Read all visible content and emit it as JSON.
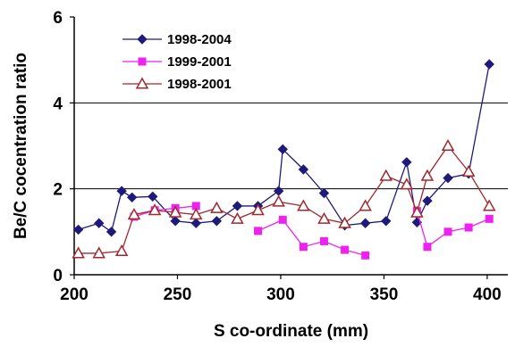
{
  "chart_data": {
    "type": "line",
    "title": "",
    "xlabel": "S co-ordinate (mm)",
    "ylabel": "Be/C cocentration ratio",
    "xlim": [
      200,
      410
    ],
    "ylim": [
      0,
      6
    ],
    "x_ticks": [
      200,
      250,
      300,
      350,
      400
    ],
    "y_ticks": [
      0,
      2,
      4,
      6
    ],
    "gridlines_y": [
      2,
      4
    ],
    "legend_position": "top-left",
    "series": [
      {
        "name": "1998-2004",
        "color": "#1f1a7a",
        "marker": "diamond",
        "segments": [
          [
            [
              202,
              1.05
            ],
            [
              212,
              1.2
            ],
            [
              218,
              1.0
            ],
            [
              223,
              1.95
            ],
            [
              228,
              1.8
            ],
            [
              238,
              1.82
            ],
            [
              249,
              1.25
            ],
            [
              259,
              1.2
            ],
            [
              269,
              1.25
            ],
            [
              279,
              1.6
            ],
            [
              289,
              1.6
            ],
            [
              299,
              1.95
            ],
            [
              301,
              2.92
            ],
            [
              311,
              2.45
            ],
            [
              321,
              1.9
            ],
            [
              331,
              1.15
            ],
            [
              341,
              1.2
            ],
            [
              351,
              1.25
            ],
            [
              361,
              2.62
            ],
            [
              366,
              1.22
            ],
            [
              371,
              1.72
            ],
            [
              381,
              2.25
            ],
            [
              391,
              2.35
            ],
            [
              401,
              4.9
            ]
          ]
        ]
      },
      {
        "name": "1999-2001",
        "color": "#ee22ee",
        "marker": "square",
        "segments": [
          [
            [
              229,
              1.35
            ],
            [
              239,
              1.5
            ],
            [
              249,
              1.55
            ],
            [
              259,
              1.6
            ]
          ],
          [
            [
              289,
              1.02
            ],
            [
              301,
              1.28
            ],
            [
              311,
              0.65
            ],
            [
              321,
              0.78
            ],
            [
              331,
              0.58
            ],
            [
              341,
              0.45
            ]
          ],
          [
            [
              366,
              1.48
            ],
            [
              371,
              0.65
            ],
            [
              381,
              1.0
            ],
            [
              391,
              1.1
            ],
            [
              401,
              1.3
            ]
          ]
        ]
      },
      {
        "name": "1998-2001",
        "color": "#a0282e",
        "marker": "triangle-open",
        "segments": [
          [
            [
              202,
              0.5
            ],
            [
              212,
              0.5
            ],
            [
              223,
              0.55
            ],
            [
              229,
              1.4
            ],
            [
              239,
              1.5
            ],
            [
              249,
              1.45
            ],
            [
              259,
              1.4
            ],
            [
              269,
              1.55
            ],
            [
              279,
              1.3
            ],
            [
              289,
              1.5
            ],
            [
              299,
              1.7
            ],
            [
              311,
              1.6
            ],
            [
              321,
              1.3
            ],
            [
              331,
              1.2
            ],
            [
              341,
              1.6
            ],
            [
              351,
              2.3
            ],
            [
              361,
              2.1
            ],
            [
              366,
              1.45
            ],
            [
              371,
              2.3
            ],
            [
              381,
              3.0
            ],
            [
              391,
              2.4
            ],
            [
              401,
              1.6
            ]
          ]
        ]
      }
    ]
  }
}
